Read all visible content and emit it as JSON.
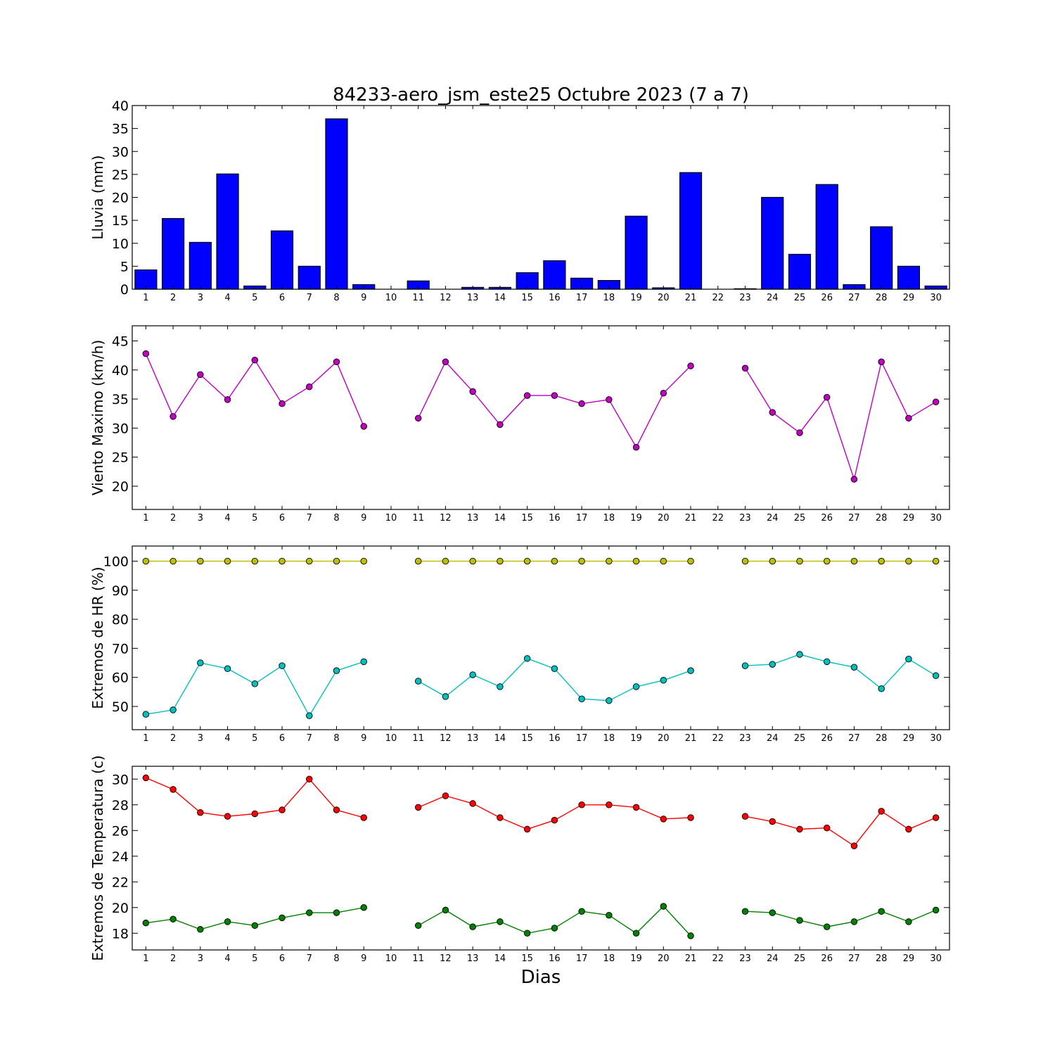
{
  "chart_data": {
    "title": "84233-aero_jsm_este25 Octubre 2023  (7 a 7)",
    "xlabel": "Dias",
    "x": [
      1,
      2,
      3,
      4,
      5,
      6,
      7,
      8,
      9,
      10,
      11,
      12,
      13,
      14,
      15,
      16,
      17,
      18,
      19,
      20,
      21,
      22,
      23,
      24,
      25,
      26,
      27,
      28,
      29,
      30
    ],
    "panels": [
      {
        "type": "bar",
        "ylabel": "Lluvia (mm)",
        "ylim": [
          0,
          40
        ],
        "yticks": [
          0,
          5,
          10,
          15,
          20,
          25,
          30,
          35,
          40
        ],
        "series": [
          {
            "color": "#0000ff",
            "values": [
              4.2,
              15.4,
              10.2,
              25.1,
              0.7,
              12.7,
              5.0,
              37.1,
              1.0,
              0,
              1.8,
              0,
              0.4,
              0.4,
              3.6,
              6.2,
              2.4,
              1.9,
              15.9,
              0.3,
              25.4,
              0,
              0.1,
              20.0,
              7.6,
              22.8,
              1.0,
              13.6,
              5.0,
              0.7
            ]
          }
        ]
      },
      {
        "type": "line",
        "ylabel": "Viento Maximo (km/h)",
        "ylim": [
          16,
          47.6
        ],
        "yticks": [
          20,
          25,
          30,
          35,
          40,
          45
        ],
        "series": [
          {
            "color": "#bf00bf",
            "values": [
              42.8,
              32.0,
              39.2,
              34.9,
              41.7,
              34.2,
              37.1,
              41.4,
              30.3,
              null,
              31.7,
              41.4,
              36.3,
              30.6,
              35.6,
              35.6,
              34.2,
              34.9,
              26.7,
              36.0,
              40.7,
              null,
              40.3,
              32.7,
              29.2,
              35.3,
              21.2,
              41.4,
              31.7,
              34.5
            ]
          }
        ]
      },
      {
        "type": "line",
        "ylabel": "Extremos de HR (%)",
        "ylim": [
          42,
          105.2
        ],
        "yticks": [
          50,
          60,
          70,
          80,
          90,
          100
        ],
        "series": [
          {
            "color": "#bfbf00",
            "values": [
              100,
              100,
              100,
              100,
              100,
              100,
              100,
              100,
              100,
              null,
              100,
              100,
              100,
              100,
              100,
              100,
              100,
              100,
              100,
              100,
              100,
              null,
              100,
              100,
              100,
              100,
              100,
              100,
              100,
              100
            ]
          },
          {
            "color": "#00bfbf",
            "values": [
              47.3,
              48.8,
              65.0,
              63.0,
              57.8,
              64.0,
              46.8,
              62.3,
              65.4,
              null,
              58.7,
              53.4,
              60.9,
              56.8,
              66.5,
              63.0,
              52.6,
              52.0,
              56.8,
              59.0,
              62.3,
              null,
              64.0,
              64.5,
              67.9,
              65.4,
              63.5,
              56.1,
              66.3,
              60.6
            ]
          }
        ]
      },
      {
        "type": "line",
        "ylabel": "Extremos de Temperatura (c)",
        "ylim": [
          16.7,
          31.0
        ],
        "yticks": [
          18,
          20,
          22,
          24,
          26,
          28,
          30
        ],
        "series": [
          {
            "color": "#ff0000",
            "values": [
              30.1,
              29.2,
              27.4,
              27.1,
              27.3,
              27.6,
              30.0,
              27.6,
              27.0,
              null,
              27.8,
              28.7,
              28.1,
              27.0,
              26.1,
              26.8,
              28.0,
              28.0,
              27.8,
              26.9,
              27.0,
              null,
              27.1,
              26.7,
              26.1,
              26.2,
              24.8,
              27.5,
              26.1,
              27.0
            ]
          },
          {
            "color": "#008000",
            "values": [
              18.8,
              19.1,
              18.3,
              18.9,
              18.6,
              19.2,
              19.6,
              19.6,
              20.0,
              null,
              18.6,
              19.8,
              18.5,
              18.9,
              18.0,
              18.4,
              19.7,
              19.4,
              18.0,
              20.1,
              17.8,
              null,
              19.7,
              19.6,
              19.0,
              18.5,
              18.9,
              19.7,
              18.9,
              19.8
            ]
          }
        ]
      }
    ]
  }
}
